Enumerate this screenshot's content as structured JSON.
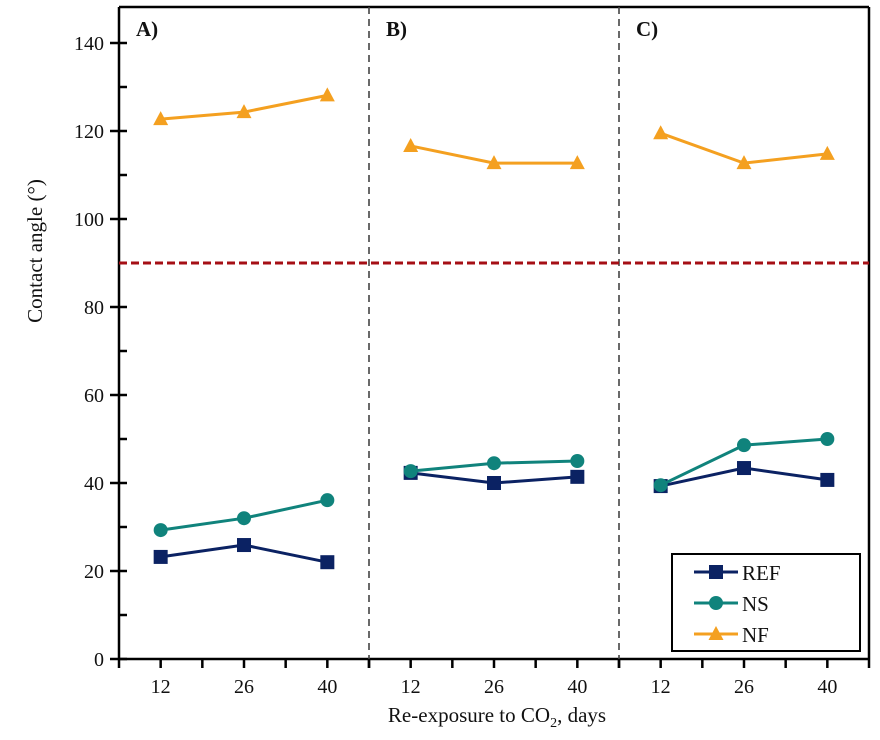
{
  "chart_data": {
    "type": "line",
    "title": "",
    "xlabel": "Re-exposure to CO",
    "xlabel_sub": "2",
    "xlabel_suffix": ", days",
    "ylabel": "Contact angle (°)",
    "ylim": [
      0,
      140
    ],
    "yticks": [
      0,
      20,
      40,
      60,
      80,
      100,
      120,
      140
    ],
    "ytick_labels": [
      "0",
      "20",
      "40",
      "60",
      "80",
      "100",
      "120",
      "140"
    ],
    "yminor_step": 10,
    "x_categories": [
      "12",
      "26",
      "40"
    ],
    "reference_line": {
      "y": 90,
      "color": "#a50f15",
      "style": "dashed"
    },
    "grid": false,
    "legend_position": "bottom-right",
    "panels": [
      {
        "label": "A)",
        "series": [
          {
            "name": "REF",
            "values": [
              23.2,
              25.9,
              22.0
            ]
          },
          {
            "name": "NS",
            "values": [
              29.3,
              32.0,
              36.1
            ]
          },
          {
            "name": "NF",
            "values": [
              122.7,
              124.3,
              128.1
            ]
          }
        ]
      },
      {
        "label": "B)",
        "series": [
          {
            "name": "REF",
            "values": [
              42.3,
              40.0,
              41.4
            ]
          },
          {
            "name": "NS",
            "values": [
              42.7,
              44.5,
              45.0
            ]
          },
          {
            "name": "NF",
            "values": [
              116.6,
              112.7,
              112.7
            ]
          }
        ]
      },
      {
        "label": "C)",
        "series": [
          {
            "name": "REF",
            "values": [
              39.3,
              43.4,
              40.7
            ]
          },
          {
            "name": "NS",
            "values": [
              39.5,
              48.6,
              50.0
            ]
          },
          {
            "name": "NF",
            "values": [
              119.5,
              112.7,
              114.8
            ]
          }
        ]
      }
    ],
    "legend": [
      {
        "name": "REF",
        "color": "#0b2263",
        "marker": "square"
      },
      {
        "name": "NS",
        "color": "#10837c",
        "marker": "circle"
      },
      {
        "name": "NF",
        "color": "#f4a020",
        "marker": "triangle"
      }
    ]
  }
}
